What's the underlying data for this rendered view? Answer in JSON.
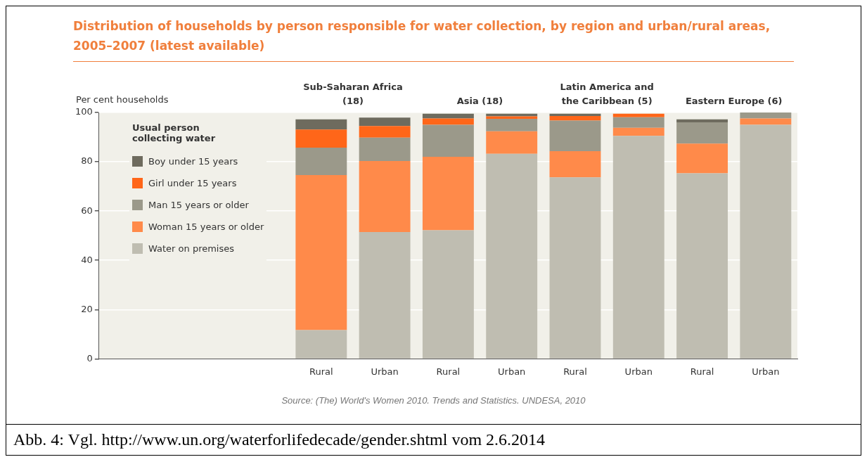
{
  "chart_data": {
    "type": "bar",
    "stacked": true,
    "title": "Distribution of households by person responsible for water collection, by region and urban/rural areas, 2005–2007 (latest available)",
    "ylabel": "Per cent households",
    "legend_title": "Usual person collecting water",
    "categories": [
      null,
      null,
      null,
      "Rural",
      "Urban",
      "Rural",
      "Urban",
      "Rural",
      "Urban",
      "Rural",
      "Urban"
    ],
    "series": [
      {
        "name": "Water on premises",
        "color": "#bfbdb1",
        "values": [
          null,
          null,
          null,
          11.7,
          51.5,
          52.2,
          83.2,
          73.7,
          90.5,
          75.3,
          95
        ]
      },
      {
        "name": "Woman 15 years or older",
        "color": "#ff8a4a",
        "values": [
          null,
          null,
          null,
          62.9,
          28.8,
          29.8,
          9.2,
          10.6,
          3.3,
          12.1,
          2.6
        ]
      },
      {
        "name": "Man 15 years or older",
        "color": "#9b998a",
        "values": [
          null,
          null,
          null,
          11.1,
          9.5,
          13,
          5,
          12.4,
          4.3,
          8.6,
          2.4
        ]
      },
      {
        "name": "Girl under 15 years",
        "color": "#ff6619",
        "values": [
          null,
          null,
          null,
          7.4,
          4.7,
          2.6,
          1,
          1.9,
          1.4,
          0,
          0
        ]
      },
      {
        "name": "Boy under 15 years",
        "color": "#6e6b5e",
        "values": [
          null,
          null,
          null,
          4.1,
          3.4,
          1.9,
          1.1,
          0.9,
          0,
          1.2,
          0
        ]
      }
    ],
    "ylim": [
      0,
      100
    ],
    "yticks": [
      0,
      20,
      40,
      60,
      80,
      100
    ],
    "grid": "y",
    "legend": "top left",
    "annotations": [
      "Sub-Saharan Africa (18)",
      "Asia (18)",
      "Latin America and the Caribbean (5)",
      "Eastern Europe (6)",
      "Source: (The) World's Women 2010. Trends and Statistics. UNDESA, 2010",
      "Abb. 4: Vgl. http://www.un.org/waterforlifedecade/gender.shtml vom 2.6.2014"
    ]
  }
}
